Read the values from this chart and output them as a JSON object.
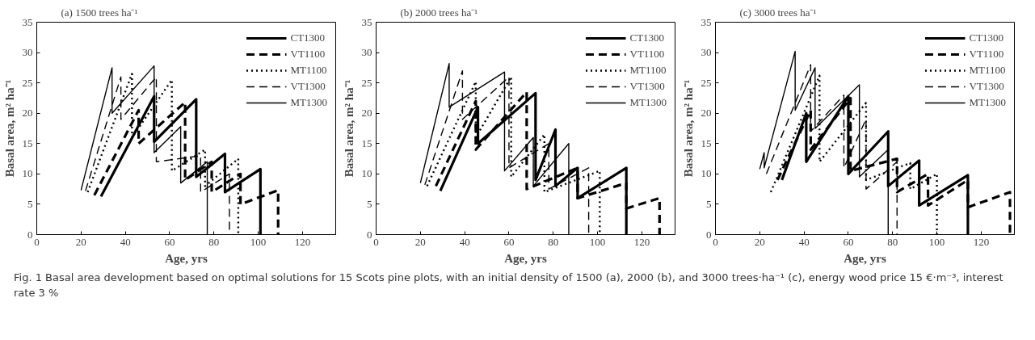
{
  "chart_data": [
    {
      "type": "line",
      "title": "(a) 1500 trees ha⁻¹",
      "xlabel": "Age, yrs",
      "ylabel": "Basal area, m² ha⁻¹",
      "xlim": [
        0,
        135
      ],
      "ylim": [
        0,
        35
      ],
      "xticks": [
        0,
        20,
        40,
        60,
        80,
        100,
        120
      ],
      "yticks": [
        0,
        5,
        10,
        15,
        20,
        25,
        30,
        35
      ],
      "legend": "top right",
      "series": [
        {
          "name": "CT1300",
          "color": "#000000",
          "line_style": "solid",
          "x": [
            29,
            53,
            53,
            72,
            72,
            85,
            85,
            101,
            101
          ],
          "values": [
            6.3,
            22.8,
            15.3,
            22.3,
            9.5,
            13.3,
            7,
            10.8,
            0
          ]
        },
        {
          "name": "VT1100",
          "color": "#000000",
          "line_style": "dashed",
          "x": [
            26,
            46,
            46,
            67,
            67,
            79,
            79,
            92,
            92,
            109,
            109
          ],
          "values": [
            6.5,
            20.5,
            15,
            21.8,
            9,
            12,
            7,
            10,
            5,
            7.3,
            0
          ]
        },
        {
          "name": "MT1100",
          "color": "#000000",
          "line_style": "dotted",
          "x": [
            23,
            43,
            43,
            61,
            61,
            76,
            76,
            91,
            91
          ],
          "values": [
            7,
            26.5,
            16,
            25.5,
            10.5,
            14,
            8,
            12.5,
            0
          ]
        },
        {
          "name": "VT1300",
          "color": "#000000",
          "line_style": "dashed",
          "x": [
            22,
            38,
            38,
            54,
            54,
            74,
            74,
            87,
            87
          ],
          "values": [
            7.2,
            26,
            19,
            26,
            12,
            13,
            7,
            10,
            0
          ]
        },
        {
          "name": "MT1300",
          "color": "#000000",
          "line_style": "solid",
          "x": [
            20,
            34,
            34,
            53,
            53,
            65,
            65,
            77,
            77
          ],
          "values": [
            7.3,
            27.5,
            20,
            27.8,
            13.5,
            17.8,
            8.5,
            12,
            0
          ]
        }
      ]
    },
    {
      "type": "line",
      "title": "(b) 2000 trees ha⁻¹",
      "xlabel": "Age, yrs",
      "ylabel": "Basal area, m² ha⁻¹",
      "xlim": [
        0,
        135
      ],
      "ylim": [
        0,
        35
      ],
      "xticks": [
        0,
        20,
        40,
        60,
        80,
        100,
        120
      ],
      "yticks": [
        0,
        5,
        10,
        15,
        20,
        25,
        30,
        35
      ],
      "legend": "top right",
      "series": [
        {
          "name": "CT1300",
          "color": "#000000",
          "line_style": "solid",
          "x": [
            29,
            46,
            46,
            72,
            72,
            81,
            81,
            91,
            91,
            113,
            113
          ],
          "values": [
            7.2,
            21,
            15,
            23.3,
            9,
            17.3,
            8,
            11,
            6,
            11,
            0
          ]
        },
        {
          "name": "VT1100",
          "color": "#000000",
          "line_style": "dashed",
          "x": [
            27,
            45,
            45,
            68,
            68,
            91,
            91,
            113,
            113,
            128,
            128
          ],
          "values": [
            8,
            22,
            14,
            23.5,
            7.5,
            11,
            6,
            8.5,
            4.3,
            6,
            0
          ]
        },
        {
          "name": "MT1100",
          "color": "#000000",
          "line_style": "dotted",
          "x": [
            23,
            45,
            45,
            61,
            61,
            76,
            76,
            101,
            101
          ],
          "values": [
            8,
            25.2,
            16,
            26,
            9.5,
            16.5,
            7,
            10.5,
            0
          ]
        },
        {
          "name": "VT1300",
          "color": "#000000",
          "line_style": "dashed",
          "x": [
            22,
            39,
            39,
            60,
            60,
            78,
            78,
            96,
            96
          ],
          "values": [
            8.2,
            27,
            19,
            26,
            11,
            15,
            7.5,
            11,
            0
          ]
        },
        {
          "name": "MT1300",
          "color": "#000000",
          "line_style": "solid",
          "x": [
            20,
            33,
            33,
            58,
            58,
            71,
            71,
            87,
            87
          ],
          "values": [
            8.5,
            28.2,
            21,
            26.8,
            10.5,
            16,
            8,
            15,
            0
          ]
        }
      ]
    },
    {
      "type": "line",
      "title": "(c) 3000 trees ha⁻¹",
      "xlabel": "Age, yrs",
      "ylabel": "Basal area, m² ha⁻¹",
      "xlim": [
        0,
        135
      ],
      "ylim": [
        0,
        35
      ],
      "xticks": [
        0,
        20,
        40,
        60,
        80,
        100,
        120
      ],
      "yticks": [
        0,
        5,
        10,
        15,
        20,
        25,
        30,
        35
      ],
      "legend": "top right",
      "annotations": [
        "Fig. 1 Basal area development based on optimal solutions for 15 Scots pine plots, with an initial density of 1500 (a), 2000 (b), and 3000 trees·ha⁻¹ (c), energy wood price 15 €·m⁻³, interest rate 3 %"
      ],
      "series": [
        {
          "name": "CT1300",
          "color": "#000000",
          "line_style": "solid",
          "x": [
            30,
            41,
            41,
            60,
            60,
            78,
            78,
            92,
            92,
            114,
            114
          ],
          "values": [
            9,
            20,
            12,
            22.8,
            10,
            17,
            8,
            12.2,
            4.8,
            9.8,
            0
          ]
        },
        {
          "name": "VT1100",
          "color": "#000000",
          "line_style": "dashed",
          "x": [
            28,
            43,
            43,
            61,
            61,
            82,
            82,
            96,
            96,
            114,
            114,
            133,
            133
          ],
          "values": [
            9,
            20.5,
            14,
            22.5,
            10.5,
            12.5,
            7,
            10,
            4.8,
            9,
            4.5,
            7,
            0
          ]
        },
        {
          "name": "MT1100",
          "color": "#000000",
          "line_style": "dotted",
          "x": [
            25,
            47,
            47,
            68,
            68,
            88,
            88,
            100,
            100
          ],
          "values": [
            7,
            26.2,
            12,
            21.7,
            9,
            11.8,
            7.5,
            10,
            0
          ]
        },
        {
          "name": "VT1300",
          "color": "#000000",
          "line_style": "dashed",
          "x": [
            23,
            43,
            43,
            58,
            58,
            68,
            68,
            82,
            82
          ],
          "values": [
            10,
            28,
            17,
            23,
            11,
            19,
            7.5,
            12,
            0
          ]
        },
        {
          "name": "MT1300",
          "color": "#000000",
          "line_style": "solid",
          "x": [
            20,
            22,
            22,
            36,
            36,
            45,
            45,
            65,
            65,
            78,
            78
          ],
          "values": [
            10.8,
            13.5,
            11,
            30.2,
            20.5,
            27.5,
            17.5,
            24.7,
            9.5,
            14,
            0
          ]
        }
      ]
    }
  ]
}
